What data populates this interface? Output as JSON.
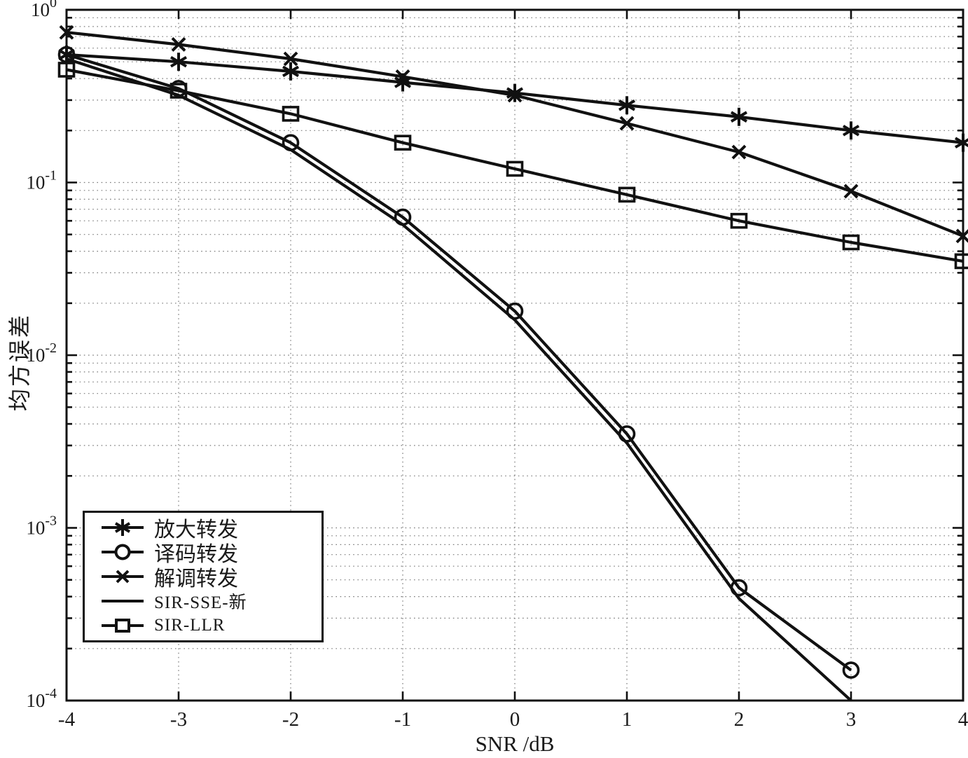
{
  "colors": {
    "line": "#111111",
    "grid": "#7a7a7a",
    "background": "#ffffff",
    "text": "#1a1a1a"
  },
  "chart_data": {
    "type": "line",
    "title": "",
    "xlabel": "SNR /dB",
    "ylabel": "均方误差",
    "y_scale": "log",
    "xlim": [
      -4,
      4
    ],
    "ylim": [
      0.0001,
      1
    ],
    "x_ticks": [
      -4,
      -3,
      -2,
      -1,
      0,
      1,
      2,
      3,
      4
    ],
    "x_tick_labels": [
      "-4",
      "-3",
      "-2",
      "-1",
      "0",
      "1",
      "2",
      "3",
      "4"
    ],
    "y_tick_base": "10",
    "y_tick_exponents": [
      0,
      -1,
      -2,
      -3,
      -4
    ],
    "grid": "dotted, major and minor horizontal log lines, vertical at integer SNR",
    "legend_position": "lower-left",
    "series": [
      {
        "name": "放大转发",
        "marker": "asterisk",
        "x": [
          -4,
          -3,
          -2,
          -1,
          0,
          1,
          2,
          3,
          4
        ],
        "values": [
          0.55,
          0.5,
          0.44,
          0.38,
          0.33,
          0.28,
          0.24,
          0.2,
          0.17
        ]
      },
      {
        "name": "译码转发",
        "marker": "circle",
        "x": [
          -4,
          -3,
          -2,
          -1,
          0,
          1,
          2,
          3
        ],
        "values": [
          0.55,
          0.35,
          0.17,
          0.063,
          0.018,
          0.0035,
          0.00045,
          0.00015
        ]
      },
      {
        "name": "解调转发",
        "marker": "x",
        "x": [
          -4,
          -3,
          -2,
          -1,
          0,
          1,
          2,
          3,
          4
        ],
        "values": [
          0.74,
          0.63,
          0.52,
          0.41,
          0.32,
          0.22,
          0.15,
          0.089,
          0.049
        ]
      },
      {
        "name": "SIR-SSE-新",
        "marker": "none",
        "x": [
          -4,
          -3,
          -2,
          -1,
          0,
          1,
          2,
          3
        ],
        "values": [
          0.52,
          0.32,
          0.155,
          0.057,
          0.016,
          0.0031,
          0.00039,
          0.0001
        ]
      },
      {
        "name": "SIR-LLR",
        "marker": "square",
        "x": [
          -4,
          -3,
          -2,
          -1,
          0,
          1,
          2,
          3,
          4
        ],
        "values": [
          0.45,
          0.34,
          0.25,
          0.17,
          0.12,
          0.085,
          0.06,
          0.045,
          0.035
        ]
      }
    ]
  }
}
